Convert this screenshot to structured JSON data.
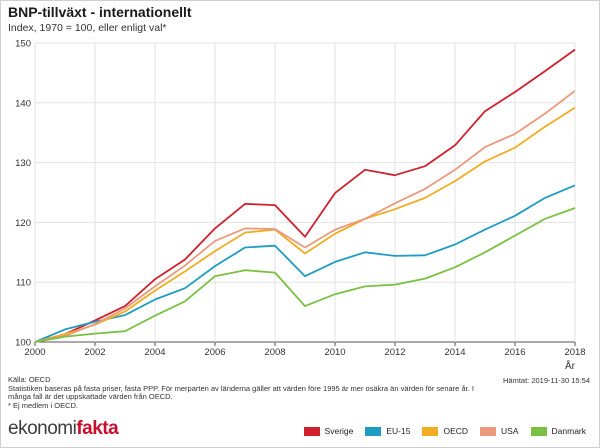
{
  "header": {
    "title": "BNP-tillväxt - internationellt",
    "subtitle": "Index, 1970 = 100, eller enligt val*"
  },
  "footer": {
    "source": "Källa: OECD",
    "note1": "Statistiken baseras på fasta priser, fasta PPP. För merparten av länderna gäller att värden före 1995 är mer osäkra än värden för senare år. I",
    "note2": "många fall är det uppskattade värden från OECD.",
    "note3": "* Ej medlem i OECD.",
    "retrieved": "Hämtat: 2019-11-30 15:54"
  },
  "logo": {
    "part1": "ekonomi",
    "part2": "fakta"
  },
  "chart_data": {
    "type": "line",
    "title": "BNP-tillväxt - internationellt",
    "xlabel": "År",
    "ylabel": "",
    "xlim": [
      2000,
      2018
    ],
    "ylim": [
      100,
      150
    ],
    "xticks": [
      2000,
      2002,
      2004,
      2006,
      2008,
      2010,
      2012,
      2014,
      2016,
      2018
    ],
    "yticks": [
      100,
      110,
      120,
      130,
      140,
      150
    ],
    "grid": true,
    "legend_position": "bottom-right",
    "x": [
      2000,
      2001,
      2002,
      2003,
      2004,
      2005,
      2006,
      2007,
      2008,
      2009,
      2010,
      2011,
      2012,
      2013,
      2014,
      2015,
      2016,
      2017,
      2018
    ],
    "series": [
      {
        "name": "Sverige",
        "color": "#d0202e",
        "values": [
          100,
          101.3,
          103.6,
          106.0,
          110.5,
          113.8,
          119.0,
          123.1,
          122.9,
          117.6,
          124.9,
          128.8,
          127.9,
          129.4,
          132.9,
          138.6,
          141.8,
          145.3,
          148.9
        ]
      },
      {
        "name": "EU-15",
        "color": "#1f9cc4",
        "values": [
          100,
          102.1,
          103.4,
          104.5,
          107.1,
          109.0,
          112.7,
          115.8,
          116.1,
          111.0,
          113.4,
          115.0,
          114.4,
          114.5,
          116.3,
          118.8,
          121.1,
          124.1,
          126.2
        ]
      },
      {
        "name": "OECD",
        "color": "#f1ac22",
        "values": [
          100,
          101.3,
          102.9,
          105.1,
          108.6,
          111.8,
          115.2,
          118.3,
          118.8,
          114.8,
          118.1,
          120.6,
          122.2,
          124.1,
          126.9,
          130.2,
          132.5,
          136.0,
          139.2
        ]
      },
      {
        "name": "USA",
        "color": "#eb9a7e",
        "values": [
          100,
          101.0,
          103.0,
          105.6,
          109.3,
          112.8,
          116.9,
          119.0,
          118.9,
          115.8,
          118.8,
          120.6,
          123.2,
          125.6,
          128.8,
          132.6,
          134.8,
          138.2,
          142.0
        ]
      },
      {
        "name": "Danmark",
        "color": "#7ac143",
        "values": [
          100,
          100.9,
          101.4,
          101.8,
          104.4,
          106.8,
          111.0,
          112.0,
          111.6,
          106.0,
          108.0,
          109.3,
          109.6,
          110.6,
          112.5,
          115.0,
          117.8,
          120.6,
          122.4
        ]
      }
    ]
  }
}
